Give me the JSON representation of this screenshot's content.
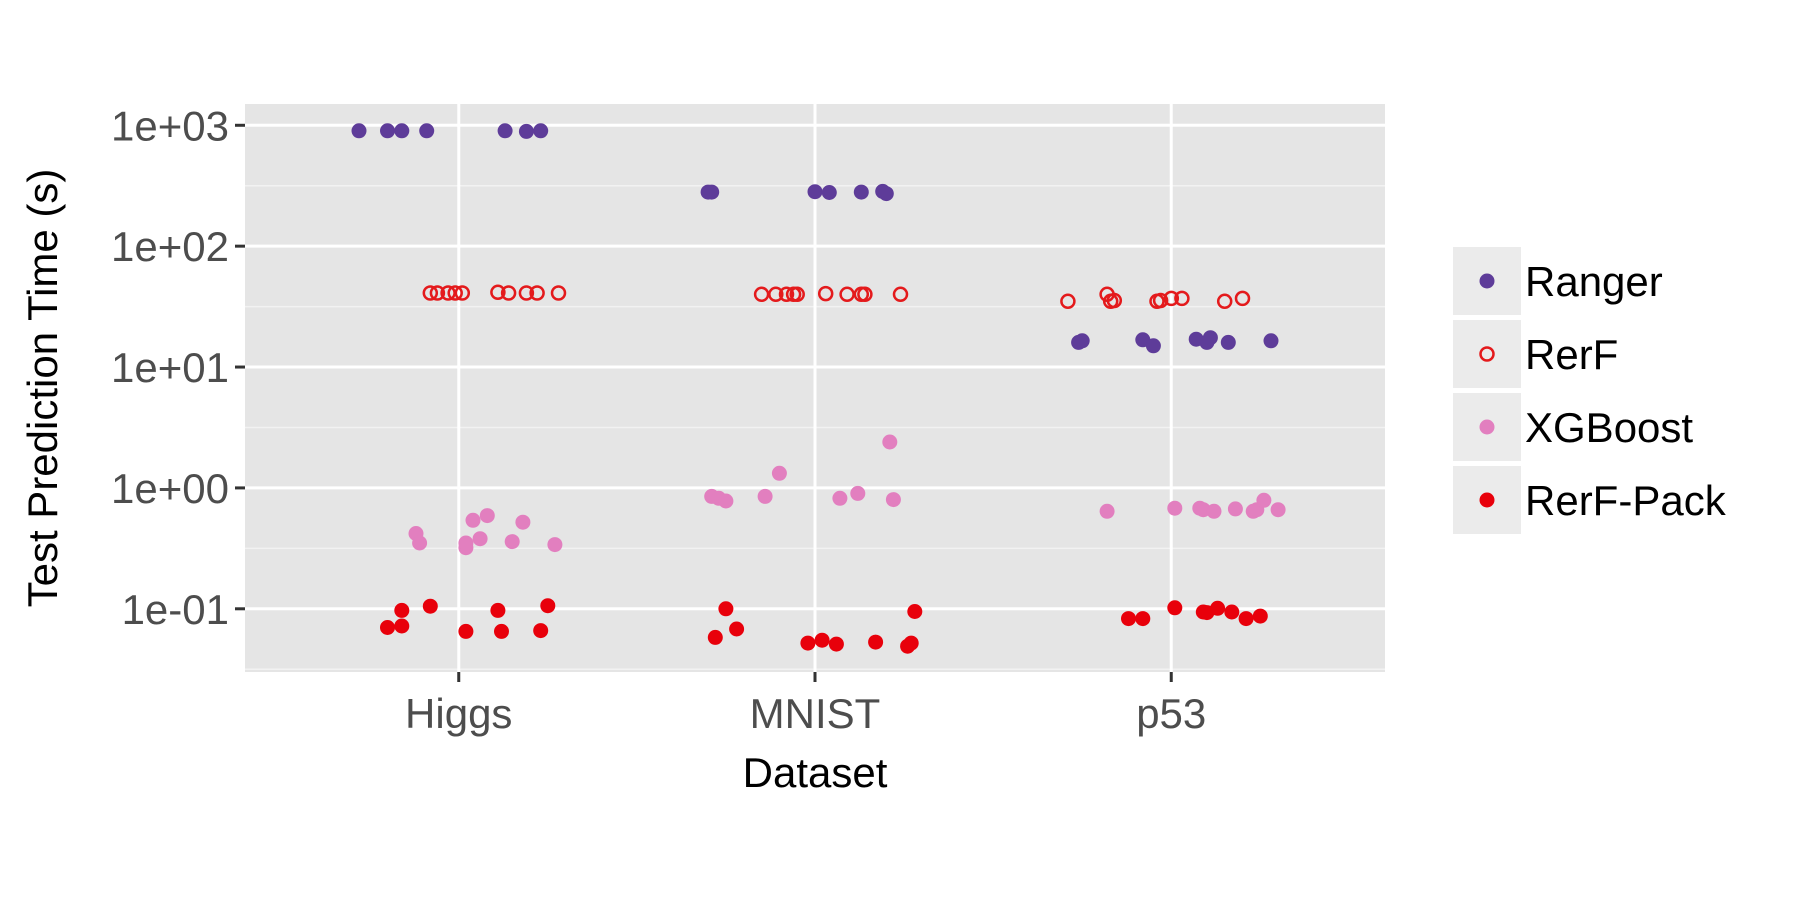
{
  "chart_data": {
    "type": "scatter",
    "xlabel": "Dataset",
    "ylabel": "Test Prediction Time (s)",
    "y_scale": "log10",
    "ylim": [
      0.03,
      1500
    ],
    "y_ticks": [
      {
        "value": 0.1,
        "label": "1e-01"
      },
      {
        "value": 1,
        "label": "1e+00"
      },
      {
        "value": 10,
        "label": "1e+01"
      },
      {
        "value": 100,
        "label": "1e+02"
      },
      {
        "value": 1000,
        "label": "1e+03"
      }
    ],
    "categories": [
      "Higgs",
      "MNIST",
      "p53"
    ],
    "grid": true,
    "legend_position": "right",
    "series": [
      {
        "name": "Ranger",
        "color": "#5e3c99",
        "marker": "filled-circle",
        "points": [
          {
            "x": "Higgs",
            "jitter": -0.28,
            "y": 900
          },
          {
            "x": "Higgs",
            "jitter": -0.2,
            "y": 900
          },
          {
            "x": "Higgs",
            "jitter": -0.16,
            "y": 900
          },
          {
            "x": "Higgs",
            "jitter": -0.09,
            "y": 900
          },
          {
            "x": "Higgs",
            "jitter": 0.13,
            "y": 900
          },
          {
            "x": "Higgs",
            "jitter": 0.19,
            "y": 890
          },
          {
            "x": "Higgs",
            "jitter": 0.23,
            "y": 900
          },
          {
            "x": "MNIST",
            "jitter": -0.3,
            "y": 280
          },
          {
            "x": "MNIST",
            "jitter": -0.29,
            "y": 280
          },
          {
            "x": "MNIST",
            "jitter": 0.0,
            "y": 282
          },
          {
            "x": "MNIST",
            "jitter": 0.04,
            "y": 278
          },
          {
            "x": "MNIST",
            "jitter": 0.13,
            "y": 280
          },
          {
            "x": "MNIST",
            "jitter": 0.19,
            "y": 284
          },
          {
            "x": "MNIST",
            "jitter": 0.2,
            "y": 272
          },
          {
            "x": "p53",
            "jitter": -0.26,
            "y": 16
          },
          {
            "x": "p53",
            "jitter": -0.25,
            "y": 16.5
          },
          {
            "x": "p53",
            "jitter": -0.08,
            "y": 16.8
          },
          {
            "x": "p53",
            "jitter": -0.05,
            "y": 15
          },
          {
            "x": "p53",
            "jitter": 0.07,
            "y": 17
          },
          {
            "x": "p53",
            "jitter": 0.1,
            "y": 16
          },
          {
            "x": "p53",
            "jitter": 0.11,
            "y": 17.5
          },
          {
            "x": "p53",
            "jitter": 0.16,
            "y": 16
          },
          {
            "x": "p53",
            "jitter": 0.28,
            "y": 16.5
          }
        ]
      },
      {
        "name": "RerF",
        "color": "#e41a1c",
        "marker": "open-circle",
        "points": [
          {
            "x": "Higgs",
            "jitter": -0.08,
            "y": 41
          },
          {
            "x": "Higgs",
            "jitter": -0.06,
            "y": 41
          },
          {
            "x": "Higgs",
            "jitter": -0.03,
            "y": 41
          },
          {
            "x": "Higgs",
            "jitter": -0.01,
            "y": 41
          },
          {
            "x": "Higgs",
            "jitter": 0.01,
            "y": 41
          },
          {
            "x": "Higgs",
            "jitter": 0.11,
            "y": 41.5
          },
          {
            "x": "Higgs",
            "jitter": 0.14,
            "y": 41
          },
          {
            "x": "Higgs",
            "jitter": 0.19,
            "y": 41
          },
          {
            "x": "Higgs",
            "jitter": 0.22,
            "y": 41
          },
          {
            "x": "Higgs",
            "jitter": 0.28,
            "y": 41
          },
          {
            "x": "MNIST",
            "jitter": -0.15,
            "y": 40
          },
          {
            "x": "MNIST",
            "jitter": -0.11,
            "y": 40
          },
          {
            "x": "MNIST",
            "jitter": -0.08,
            "y": 40
          },
          {
            "x": "MNIST",
            "jitter": -0.06,
            "y": 40
          },
          {
            "x": "MNIST",
            "jitter": -0.05,
            "y": 40
          },
          {
            "x": "MNIST",
            "jitter": 0.03,
            "y": 40.5
          },
          {
            "x": "MNIST",
            "jitter": 0.09,
            "y": 40
          },
          {
            "x": "MNIST",
            "jitter": 0.13,
            "y": 40
          },
          {
            "x": "MNIST",
            "jitter": 0.14,
            "y": 40
          },
          {
            "x": "MNIST",
            "jitter": 0.24,
            "y": 40
          },
          {
            "x": "p53",
            "jitter": -0.29,
            "y": 35
          },
          {
            "x": "p53",
            "jitter": -0.18,
            "y": 40
          },
          {
            "x": "p53",
            "jitter": -0.17,
            "y": 35
          },
          {
            "x": "p53",
            "jitter": -0.16,
            "y": 35.5
          },
          {
            "x": "p53",
            "jitter": -0.04,
            "y": 35
          },
          {
            "x": "p53",
            "jitter": -0.03,
            "y": 35.5
          },
          {
            "x": "p53",
            "jitter": 0.0,
            "y": 37
          },
          {
            "x": "p53",
            "jitter": 0.03,
            "y": 37
          },
          {
            "x": "p53",
            "jitter": 0.15,
            "y": 35
          },
          {
            "x": "p53",
            "jitter": 0.2,
            "y": 37
          }
        ]
      },
      {
        "name": "XGBoost",
        "color": "#e27fbf",
        "marker": "filled-circle",
        "points": [
          {
            "x": "Higgs",
            "jitter": -0.12,
            "y": 0.42
          },
          {
            "x": "Higgs",
            "jitter": -0.11,
            "y": 0.35
          },
          {
            "x": "Higgs",
            "jitter": 0.02,
            "y": 0.32
          },
          {
            "x": "Higgs",
            "jitter": 0.02,
            "y": 0.35
          },
          {
            "x": "Higgs",
            "jitter": 0.04,
            "y": 0.54
          },
          {
            "x": "Higgs",
            "jitter": 0.06,
            "y": 0.38
          },
          {
            "x": "Higgs",
            "jitter": 0.08,
            "y": 0.59
          },
          {
            "x": "Higgs",
            "jitter": 0.15,
            "y": 0.36
          },
          {
            "x": "Higgs",
            "jitter": 0.18,
            "y": 0.52
          },
          {
            "x": "Higgs",
            "jitter": 0.27,
            "y": 0.34
          },
          {
            "x": "MNIST",
            "jitter": -0.29,
            "y": 0.85
          },
          {
            "x": "MNIST",
            "jitter": -0.27,
            "y": 0.82
          },
          {
            "x": "MNIST",
            "jitter": -0.25,
            "y": 0.78
          },
          {
            "x": "MNIST",
            "jitter": -0.14,
            "y": 0.85
          },
          {
            "x": "MNIST",
            "jitter": -0.1,
            "y": 1.32
          },
          {
            "x": "MNIST",
            "jitter": 0.07,
            "y": 0.82
          },
          {
            "x": "MNIST",
            "jitter": 0.12,
            "y": 0.9
          },
          {
            "x": "MNIST",
            "jitter": 0.21,
            "y": 2.4
          },
          {
            "x": "MNIST",
            "jitter": 0.22,
            "y": 0.8
          },
          {
            "x": "p53",
            "jitter": -0.18,
            "y": 0.64
          },
          {
            "x": "p53",
            "jitter": 0.01,
            "y": 0.68
          },
          {
            "x": "p53",
            "jitter": 0.08,
            "y": 0.68
          },
          {
            "x": "p53",
            "jitter": 0.09,
            "y": 0.66
          },
          {
            "x": "p53",
            "jitter": 0.12,
            "y": 0.64
          },
          {
            "x": "p53",
            "jitter": 0.18,
            "y": 0.67
          },
          {
            "x": "p53",
            "jitter": 0.23,
            "y": 0.64
          },
          {
            "x": "p53",
            "jitter": 0.24,
            "y": 0.66
          },
          {
            "x": "p53",
            "jitter": 0.26,
            "y": 0.79
          },
          {
            "x": "p53",
            "jitter": 0.3,
            "y": 0.66
          }
        ]
      },
      {
        "name": "RerF-Pack",
        "color": "#e8000b",
        "marker": "filled-circle",
        "points": [
          {
            "x": "Higgs",
            "jitter": -0.2,
            "y": 0.07
          },
          {
            "x": "Higgs",
            "jitter": -0.16,
            "y": 0.097
          },
          {
            "x": "Higgs",
            "jitter": -0.16,
            "y": 0.072
          },
          {
            "x": "Higgs",
            "jitter": -0.08,
            "y": 0.105
          },
          {
            "x": "Higgs",
            "jitter": 0.02,
            "y": 0.065
          },
          {
            "x": "Higgs",
            "jitter": 0.11,
            "y": 0.097
          },
          {
            "x": "Higgs",
            "jitter": 0.12,
            "y": 0.065
          },
          {
            "x": "Higgs",
            "jitter": 0.23,
            "y": 0.066
          },
          {
            "x": "Higgs",
            "jitter": 0.25,
            "y": 0.106
          },
          {
            "x": "MNIST",
            "jitter": -0.28,
            "y": 0.058
          },
          {
            "x": "MNIST",
            "jitter": -0.25,
            "y": 0.1
          },
          {
            "x": "MNIST",
            "jitter": -0.22,
            "y": 0.068
          },
          {
            "x": "MNIST",
            "jitter": -0.02,
            "y": 0.052
          },
          {
            "x": "MNIST",
            "jitter": 0.02,
            "y": 0.055
          },
          {
            "x": "MNIST",
            "jitter": 0.06,
            "y": 0.051
          },
          {
            "x": "MNIST",
            "jitter": 0.17,
            "y": 0.053
          },
          {
            "x": "MNIST",
            "jitter": 0.26,
            "y": 0.049
          },
          {
            "x": "MNIST",
            "jitter": 0.27,
            "y": 0.052
          },
          {
            "x": "MNIST",
            "jitter": 0.28,
            "y": 0.095
          },
          {
            "x": "p53",
            "jitter": -0.12,
            "y": 0.083
          },
          {
            "x": "p53",
            "jitter": -0.08,
            "y": 0.083
          },
          {
            "x": "p53",
            "jitter": 0.01,
            "y": 0.102
          },
          {
            "x": "p53",
            "jitter": 0.09,
            "y": 0.094
          },
          {
            "x": "p53",
            "jitter": 0.1,
            "y": 0.093
          },
          {
            "x": "p53",
            "jitter": 0.13,
            "y": 0.101
          },
          {
            "x": "p53",
            "jitter": 0.17,
            "y": 0.094
          },
          {
            "x": "p53",
            "jitter": 0.21,
            "y": 0.083
          },
          {
            "x": "p53",
            "jitter": 0.25,
            "y": 0.087
          }
        ]
      }
    ]
  }
}
